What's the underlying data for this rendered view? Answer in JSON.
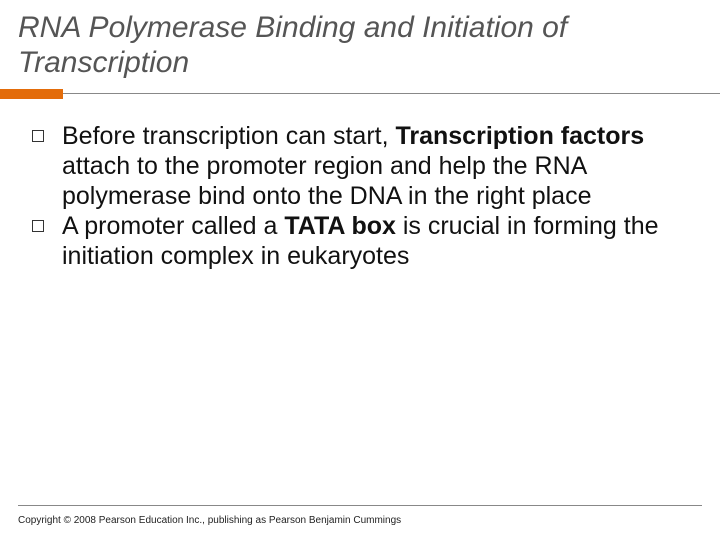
{
  "slide": {
    "title": "RNA Polymerase Binding and Initiation of Transcription",
    "title_color": "#555555",
    "title_fontsize": 30,
    "title_style": "italic",
    "accent_color": "#e36c0a",
    "accent_width": 63,
    "rule_color": "#888888",
    "background_color": "#ffffff"
  },
  "bullets": [
    {
      "runs": [
        {
          "text": "Before transcription can start, ",
          "bold": false
        },
        {
          "text": "Transcription factors",
          "bold": true
        },
        {
          "text": " attach to the promoter region and help the RNA polymerase bind onto the DNA in the right place",
          "bold": false
        }
      ]
    },
    {
      "runs": [
        {
          "text": "A promoter called a ",
          "bold": false
        },
        {
          "text": "TATA box",
          "bold": true
        },
        {
          "text": " is crucial in forming the initiation complex in eukaryotes",
          "bold": false
        }
      ]
    }
  ],
  "bullet_style": {
    "marker_border_color": "#333333",
    "text_color": "#111111",
    "text_fontsize": 25
  },
  "footer": {
    "text": "Copyright © 2008 Pearson Education Inc., publishing as Pearson Benjamin Cummings",
    "fontsize": 10,
    "color": "#222222"
  }
}
